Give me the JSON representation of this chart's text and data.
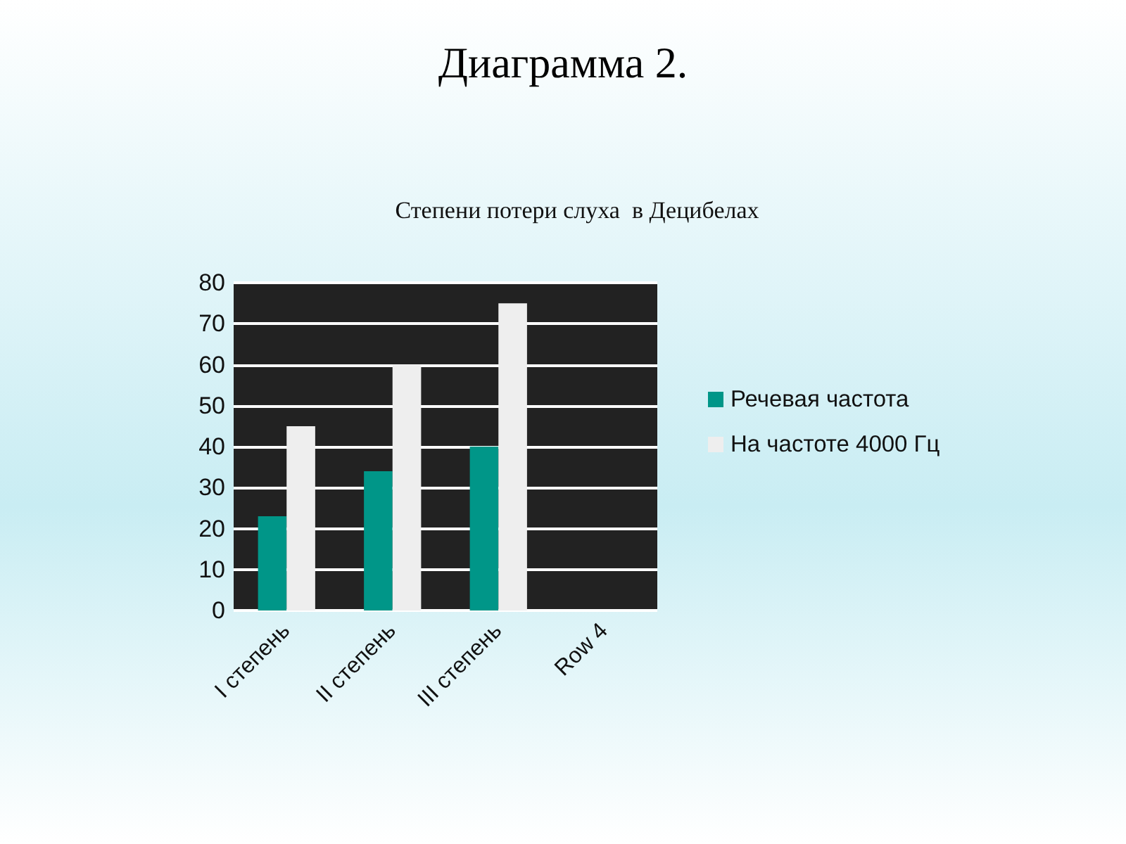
{
  "chart_data": {
    "type": "bar",
    "title": "Диаграмма 2.",
    "subtitle": "Степени потери слуха  в Децибелах",
    "categories": [
      "I степень",
      "II степень",
      "III степень",
      "Row 4"
    ],
    "series": [
      {
        "name": "Речевая частота",
        "color": "#009688",
        "values": [
          23,
          34,
          40,
          null
        ]
      },
      {
        "name": "На частоте 4000 Гц",
        "color": "#eeeeee",
        "values": [
          45,
          60,
          75,
          null
        ]
      }
    ],
    "ylim": [
      0,
      80
    ],
    "yticks": [
      0,
      10,
      20,
      30,
      40,
      50,
      60,
      70,
      80
    ],
    "grid": "y",
    "legend": "right"
  }
}
